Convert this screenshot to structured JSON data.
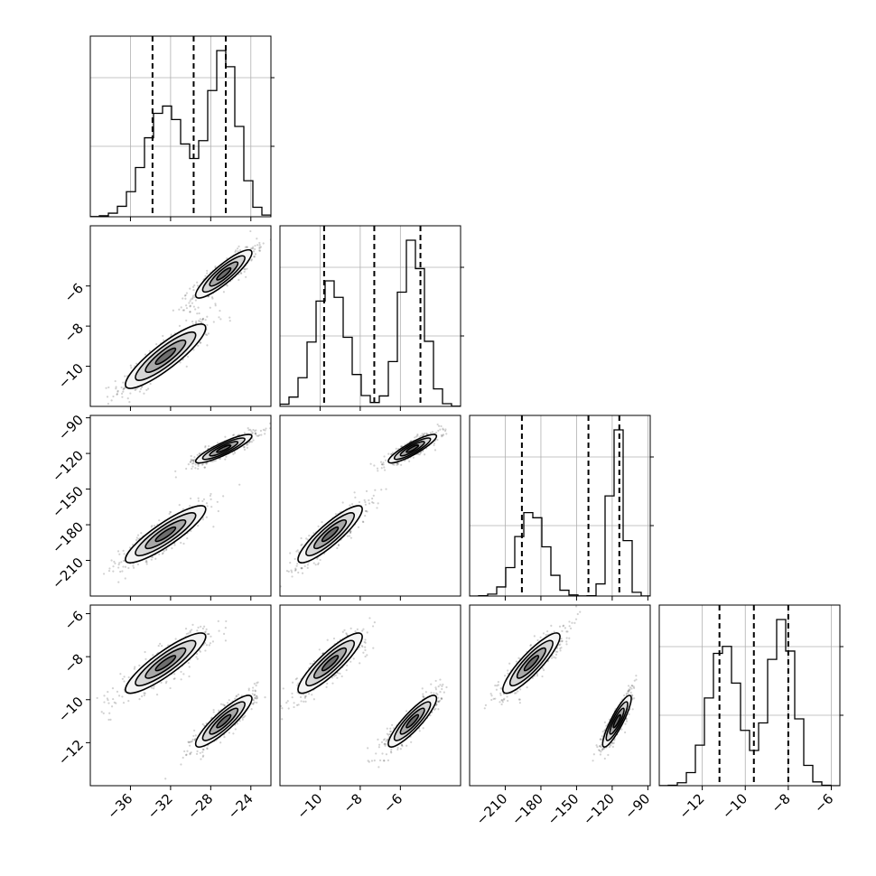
{
  "chart_data": {
    "type": "corner",
    "grid": true,
    "parameters": [
      {
        "axis_range": [
          -40,
          -22
        ],
        "ticks": [
          -36,
          -32,
          -28,
          -24
        ],
        "tick_labels": [
          "−36",
          "−32",
          "−28",
          "−24"
        ],
        "quantiles": [
          -33.8,
          -29.7,
          -26.5
        ],
        "modes": [
          {
            "center": -32.5,
            "sigma": 2.0,
            "weight": 1.0
          },
          {
            "center": -26.7,
            "sigma": 1.4,
            "weight": 1.05
          }
        ]
      },
      {
        "axis_range": [
          -12.0,
          -3.0
        ],
        "ticks": [
          -10,
          -8,
          -6
        ],
        "tick_labels": [
          "−10",
          "−8",
          "−6"
        ],
        "quantiles": [
          -9.8,
          -7.3,
          -5.0
        ],
        "modes": [
          {
            "center": -9.5,
            "sigma": 0.8,
            "weight": 1.0
          },
          {
            "center": -5.4,
            "sigma": 0.6,
            "weight": 1.0
          }
        ]
      },
      {
        "axis_range": [
          -240,
          -88
        ],
        "ticks": [
          -210,
          -180,
          -150,
          -120,
          -90
        ],
        "tick_labels": [
          "−210",
          "−180",
          "−150",
          "−120",
          "−90"
        ],
        "y_ticks": [
          -90,
          -120,
          -150,
          -180,
          -210
        ],
        "y_tick_labels": [
          "−90",
          "−120",
          "−150",
          "−180",
          "−210"
        ],
        "quantiles": [
          -196,
          -140,
          -114
        ],
        "modes": [
          {
            "center": -188,
            "sigma": 12,
            "weight": 1.0
          },
          {
            "center": -116,
            "sigma": 6,
            "weight": 1.0
          }
        ]
      },
      {
        "axis_range": [
          -14.0,
          -5.6
        ],
        "ticks": [
          -12,
          -10,
          -8,
          -6
        ],
        "tick_labels": [
          "−12",
          "−10",
          "−8",
          "−6"
        ],
        "quantiles": [
          -11.2,
          -9.6,
          -8.0
        ],
        "modes": [
          {
            "center": -11.0,
            "sigma": 0.7,
            "weight": 1.0
          },
          {
            "center": -8.3,
            "sigma": 0.6,
            "weight": 1.0
          }
        ]
      }
    ],
    "pair_modes": [
      {
        "centers": [
          -32.5,
          -9.5,
          -188,
          -8.3
        ]
      },
      {
        "centers": [
          -26.7,
          -5.4,
          -116,
          -11.0
        ]
      }
    ]
  }
}
